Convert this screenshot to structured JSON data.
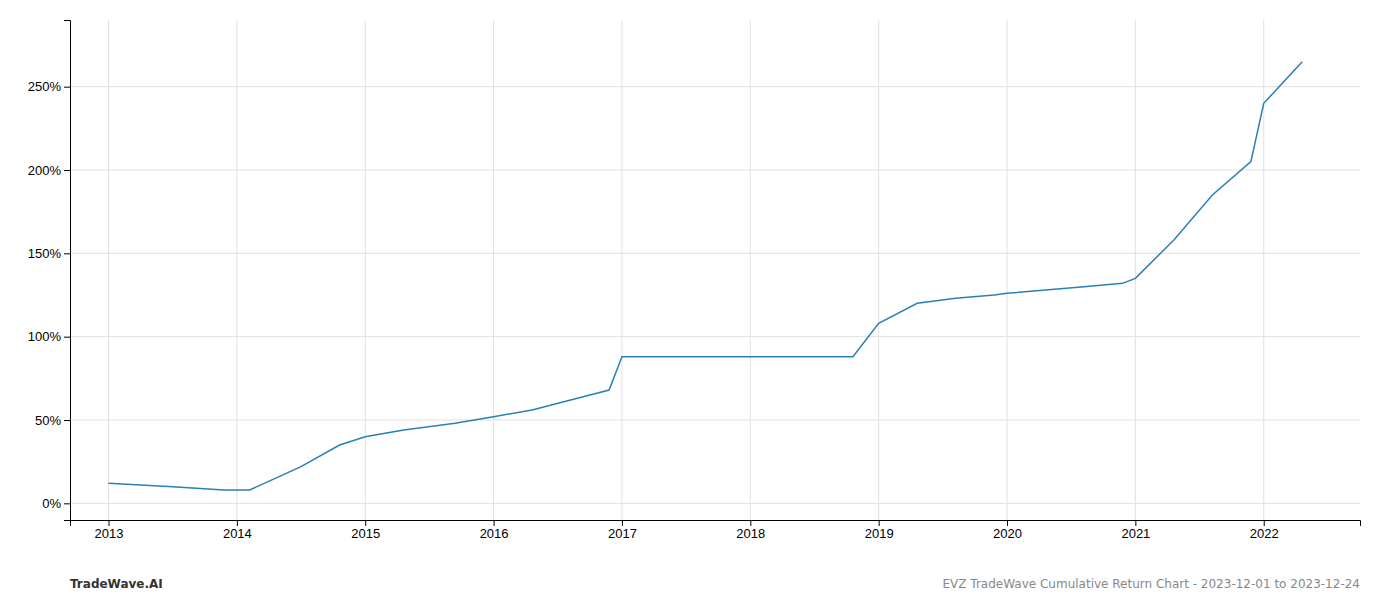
{
  "chart_data": {
    "type": "line",
    "x": [
      2013.0,
      2013.5,
      2013.9,
      2014.0,
      2014.1,
      2014.5,
      2014.8,
      2015.0,
      2015.3,
      2015.7,
      2016.0,
      2016.3,
      2016.6,
      2016.9,
      2017.0,
      2017.2,
      2017.5,
      2018.0,
      2018.3,
      2018.8,
      2019.0,
      2019.3,
      2019.6,
      2019.9,
      2020.0,
      2020.3,
      2020.6,
      2020.9,
      2021.0,
      2021.3,
      2021.6,
      2021.9,
      2022.0,
      2022.3
    ],
    "values": [
      12,
      10,
      8,
      8,
      8,
      22,
      35,
      40,
      44,
      48,
      52,
      56,
      62,
      68,
      88,
      88,
      88,
      88,
      88,
      88,
      108,
      120,
      123,
      125,
      126,
      128,
      130,
      132,
      135,
      158,
      185,
      205,
      240,
      265
    ],
    "color": "#2a7fb5",
    "xlim": [
      2012.7,
      2022.75
    ],
    "ylim": [
      -10,
      290
    ],
    "xticks": [
      2013,
      2014,
      2015,
      2016,
      2017,
      2018,
      2019,
      2020,
      2021,
      2022
    ],
    "yticks": [
      {
        "value": 0,
        "label": "0%"
      },
      {
        "value": 50,
        "label": "50%"
      },
      {
        "value": 100,
        "label": "100%"
      },
      {
        "value": 150,
        "label": "150%"
      },
      {
        "value": 200,
        "label": "200%"
      },
      {
        "value": 250,
        "label": "250%"
      }
    ],
    "grid": true,
    "annotations": [
      "TradeWave.AI",
      "EVZ TradeWave Cumulative Return Chart - 2023-12-01 to 2023-12-24"
    ]
  }
}
